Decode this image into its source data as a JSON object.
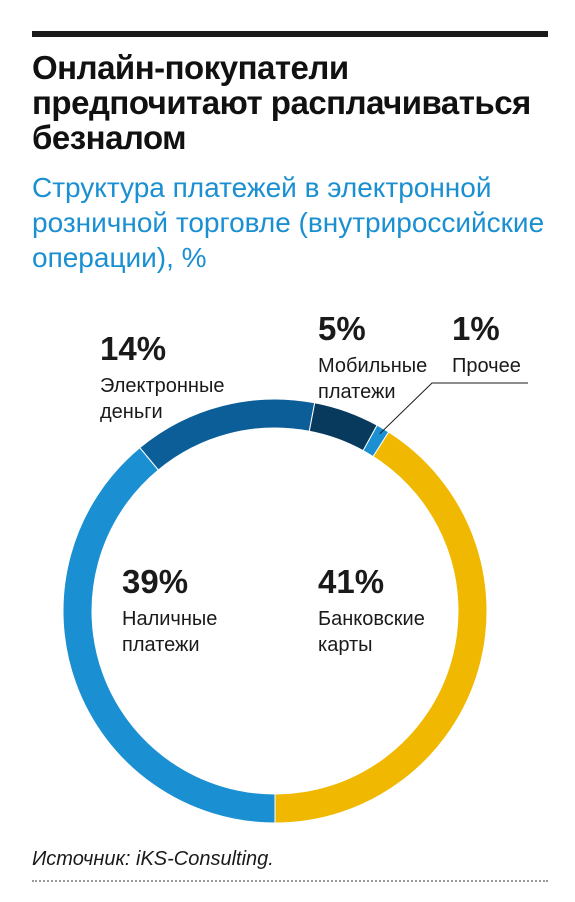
{
  "title": "Онлайн-покупатели предпочитают расплачиваться безналом",
  "subtitle": "Структура платежей в электронной розничной торговле (внутрироссийские операции), %",
  "source": "Источник: iKS-Consulting.",
  "chart_data": {
    "type": "pie",
    "donut": true,
    "unit": "%",
    "slices": [
      {
        "label_lines": [
          "Банковские",
          "карты"
        ],
        "value": 41,
        "display": "41%",
        "color": "#f0b800"
      },
      {
        "label_lines": [
          "Наличные",
          "платежи"
        ],
        "value": 39,
        "display": "39%",
        "color": "#1a8fd1"
      },
      {
        "label_lines": [
          "Электронные",
          "деньги"
        ],
        "value": 14,
        "display": "14%",
        "color": "#0b5e97"
      },
      {
        "label_lines": [
          "Мобильные",
          "платежи"
        ],
        "value": 5,
        "display": "5%",
        "color": "#083a5e"
      },
      {
        "label_lines": [
          "Прочее"
        ],
        "value": 1,
        "display": "1%",
        "color": "#1a8fd1"
      }
    ]
  }
}
